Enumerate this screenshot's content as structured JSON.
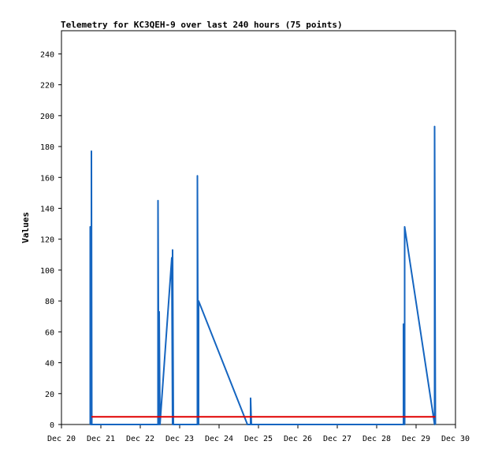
{
  "chart_data": {
    "type": "line",
    "title": "Telemetry for KC3QEH-9 over last 240 hours (75 points)",
    "xlabel": "",
    "ylabel": "Values",
    "xlim": [
      "Dec 20",
      "Dec 30"
    ],
    "ylim": [
      0,
      255
    ],
    "x_tick_labels": [
      "Dec 20",
      "Dec 21",
      "Dec 22",
      "Dec 23",
      "Dec 24",
      "Dec 25",
      "Dec 26",
      "Dec 27",
      "Dec 28",
      "Dec 29",
      "Dec 30"
    ],
    "y_ticks": [
      0,
      20,
      40,
      60,
      80,
      100,
      120,
      140,
      160,
      180,
      200,
      220,
      240
    ],
    "grid": false,
    "legend": "none",
    "series": [
      {
        "color": "#1565c0",
        "points": [
          [
            20.73,
            0
          ],
          [
            20.73,
            128
          ],
          [
            20.74,
            0
          ],
          [
            20.76,
            0
          ],
          [
            20.76,
            177
          ],
          [
            20.77,
            0
          ],
          [
            22.45,
            0
          ],
          [
            22.45,
            145
          ],
          [
            22.47,
            0
          ],
          [
            22.48,
            0
          ],
          [
            22.48,
            73
          ],
          [
            22.5,
            0
          ],
          [
            22.8,
            108
          ],
          [
            22.82,
            0
          ],
          [
            22.82,
            113
          ],
          [
            22.84,
            0
          ],
          [
            23.45,
            0
          ],
          [
            23.45,
            161
          ],
          [
            23.47,
            0
          ],
          [
            23.48,
            0
          ],
          [
            23.48,
            80
          ],
          [
            24.72,
            0
          ],
          [
            24.74,
            0
          ],
          [
            24.8,
            0
          ],
          [
            24.8,
            17
          ],
          [
            24.82,
            0
          ],
          [
            28.68,
            0
          ],
          [
            28.68,
            65
          ],
          [
            28.7,
            0
          ],
          [
            28.71,
            0
          ],
          [
            28.71,
            128
          ],
          [
            29.47,
            0
          ],
          [
            29.47,
            193
          ],
          [
            29.49,
            0
          ]
        ]
      },
      {
        "color": "#e00000",
        "points": [
          [
            20.76,
            5
          ],
          [
            29.49,
            5
          ]
        ]
      }
    ]
  }
}
